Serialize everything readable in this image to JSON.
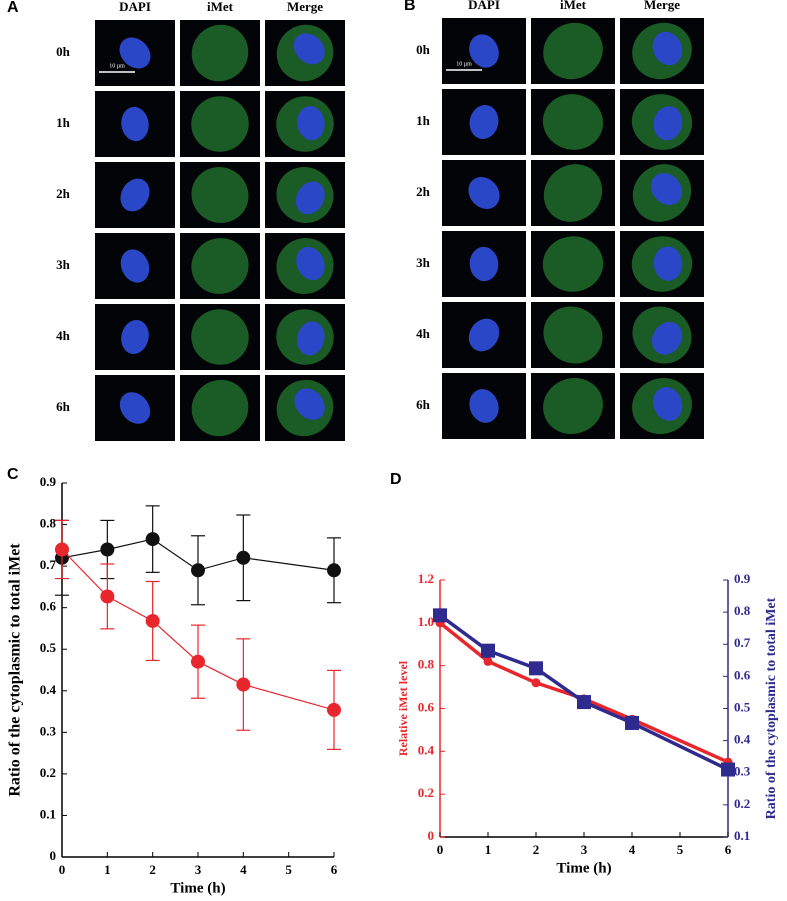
{
  "panel_a": {
    "label": "A",
    "columns": [
      "DAPI",
      "iMet",
      "Merge"
    ],
    "rows": [
      "0h",
      "1h",
      "2h",
      "3h",
      "4h",
      "6h"
    ],
    "scale_bar": "10 µm"
  },
  "panel_b": {
    "label": "B",
    "columns": [
      "DAPI",
      "iMet",
      "Merge"
    ],
    "rows": [
      "0h",
      "1h",
      "2h",
      "3h",
      "4h",
      "6h"
    ],
    "scale_bar": "10 µm"
  },
  "chart_data": [
    {
      "type": "line",
      "panel": "C",
      "x_label": "Time (h)",
      "y_label": "Ratio of the cytoplasmic to total iMet",
      "x": [
        0,
        1,
        2,
        3,
        4,
        6
      ],
      "xlim": [
        0,
        6
      ],
      "xticks": [
        0,
        1,
        2,
        3,
        4,
        5,
        6
      ],
      "ylim": [
        0,
        0.9
      ],
      "yticks": [
        0,
        0.1,
        0.2,
        0.3,
        0.4,
        0.5,
        0.6,
        0.7,
        0.8,
        0.9
      ],
      "series": [
        {
          "color": "#111111",
          "marker": "circle",
          "values": [
            0.72,
            0.74,
            0.765,
            0.69,
            0.72,
            0.69
          ],
          "errors": [
            0.09,
            0.07,
            0.08,
            0.083,
            0.103,
            0.078
          ]
        },
        {
          "color": "#e8262b",
          "marker": "circle",
          "values": [
            0.74,
            0.627,
            0.568,
            0.47,
            0.415,
            0.354
          ],
          "errors": [
            0.07,
            0.078,
            0.095,
            0.088,
            0.11,
            0.095
          ]
        }
      ]
    },
    {
      "type": "line",
      "panel": "D",
      "x_label": "Time (h)",
      "y_label": "Relative iMet level",
      "y2_label": "Ratio of the cytoplasmic to total iMet",
      "x": [
        0,
        1,
        2,
        3,
        4,
        6
      ],
      "xlim": [
        0,
        6
      ],
      "xticks": [
        0,
        1,
        2,
        3,
        4,
        5,
        6
      ],
      "ylim": [
        0,
        1.2
      ],
      "yticks": [
        0,
        0.2,
        0.4,
        0.6,
        0.8,
        {
          "value": 1,
          "label": "1.0"
        },
        1.2
      ],
      "y2lim": [
        0.1,
        0.9
      ],
      "y2ticks": [
        0.1,
        0.2,
        0.3,
        0.4,
        0.5,
        0.6,
        0.7,
        0.8,
        0.9
      ],
      "y_color": "#e8262b",
      "y2_color": "#2e2a8e",
      "series": [
        {
          "color": "#e8262b",
          "marker": "circle",
          "values": [
            1.0,
            0.82,
            0.72,
            0.645,
            0.55,
            0.35
          ]
        },
        {
          "color": "#2e2a8e",
          "marker": "square",
          "axis": "y2",
          "values": [
            0.79,
            0.68,
            0.625,
            0.52,
            0.455,
            0.31
          ]
        }
      ]
    }
  ]
}
